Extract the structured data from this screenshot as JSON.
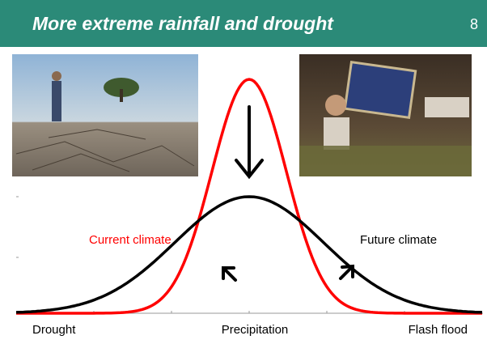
{
  "slide": {
    "title": "More extreme rainfall and drought",
    "number": "8",
    "labels": {
      "current": "Current climate",
      "future": "Future climate",
      "left": "Drought",
      "middle": "Precipitation",
      "right": "Flash flood"
    }
  }
}
